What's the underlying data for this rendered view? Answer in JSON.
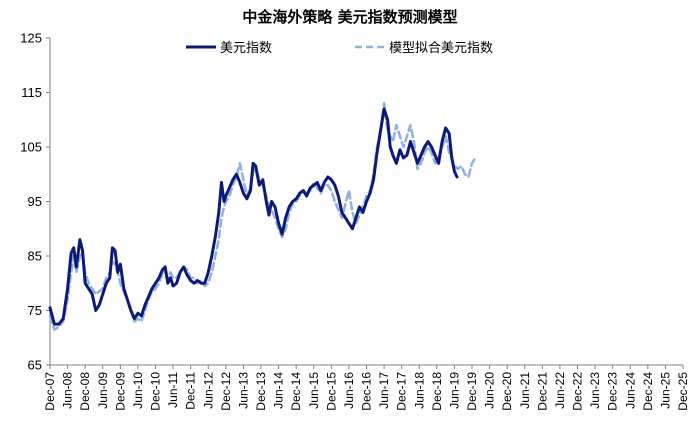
{
  "chart_data": {
    "type": "line",
    "title": "中金海外策略 美元指数预测模型",
    "xlabel": "",
    "ylabel": "",
    "ylim": [
      65,
      125
    ],
    "yticks": [
      65,
      75,
      85,
      95,
      105,
      115,
      125
    ],
    "x_tick_labels": [
      "Dec-07",
      "Jun-08",
      "Dec-08",
      "Jun-09",
      "Dec-09",
      "Jun-10",
      "Dec-10",
      "Jun-11",
      "Dec-11",
      "Jun-12",
      "Dec-12",
      "Jun-13",
      "Dec-13",
      "Jun-14",
      "Dec-14",
      "Jun-15",
      "Dec-15",
      "Jun-16",
      "Dec-16",
      "Jun-17",
      "Dec-17",
      "Jun-18",
      "Dec-18",
      "Jun-19",
      "Dec-19",
      "Jun-20",
      "Dec-20",
      "Jun-21",
      "Dec-21",
      "Jun-22",
      "Dec-22",
      "Jun-23",
      "Dec-23",
      "Jun-24",
      "Dec-24",
      "Jun-25",
      "Dec-25"
    ],
    "x_unit": "half-years since Dec-07",
    "legend": {
      "placement": "top"
    },
    "grid": false,
    "series": [
      {
        "name": "美元指数",
        "color": "#0e1a7a",
        "style": "solid",
        "points": [
          [
            0,
            75.5
          ],
          [
            0.25,
            72.5
          ],
          [
            0.5,
            72.5
          ],
          [
            0.75,
            73.5
          ],
          [
            1,
            79
          ],
          [
            1.2,
            85.5
          ],
          [
            1.35,
            86.5
          ],
          [
            1.5,
            83
          ],
          [
            1.7,
            88
          ],
          [
            1.85,
            86
          ],
          [
            2,
            80
          ],
          [
            2.2,
            79
          ],
          [
            2.4,
            78
          ],
          [
            2.6,
            75
          ],
          [
            2.8,
            76
          ],
          [
            3,
            78
          ],
          [
            3.2,
            80
          ],
          [
            3.4,
            81
          ],
          [
            3.55,
            86.5
          ],
          [
            3.7,
            86
          ],
          [
            3.85,
            82
          ],
          [
            4,
            83.5
          ],
          [
            4.2,
            79
          ],
          [
            4.4,
            77
          ],
          [
            4.6,
            75
          ],
          [
            4.8,
            73.5
          ],
          [
            5,
            74.5
          ],
          [
            5.2,
            74
          ],
          [
            5.4,
            76
          ],
          [
            5.6,
            77.5
          ],
          [
            5.8,
            79
          ],
          [
            6,
            80
          ],
          [
            6.2,
            81
          ],
          [
            6.4,
            82.5
          ],
          [
            6.55,
            83
          ],
          [
            6.7,
            80
          ],
          [
            6.85,
            81
          ],
          [
            7,
            79.5
          ],
          [
            7.2,
            80
          ],
          [
            7.4,
            82
          ],
          [
            7.6,
            83
          ],
          [
            7.8,
            81.5
          ],
          [
            8,
            80.5
          ],
          [
            8.2,
            80
          ],
          [
            8.4,
            80.5
          ],
          [
            8.6,
            80
          ],
          [
            8.8,
            80
          ],
          [
            9,
            82
          ],
          [
            9.2,
            85
          ],
          [
            9.4,
            88.5
          ],
          [
            9.6,
            93
          ],
          [
            9.75,
            98.5
          ],
          [
            9.9,
            95
          ],
          [
            10,
            96
          ],
          [
            10.2,
            97.5
          ],
          [
            10.4,
            99
          ],
          [
            10.6,
            100
          ],
          [
            10.8,
            98.5
          ],
          [
            11,
            96.5
          ],
          [
            11.2,
            95.5
          ],
          [
            11.4,
            97
          ],
          [
            11.55,
            102
          ],
          [
            11.7,
            101.5
          ],
          [
            11.9,
            98
          ],
          [
            12.1,
            99
          ],
          [
            12.3,
            95
          ],
          [
            12.45,
            92.5
          ],
          [
            12.6,
            95
          ],
          [
            12.8,
            94
          ],
          [
            13,
            91
          ],
          [
            13.2,
            89
          ],
          [
            13.4,
            92
          ],
          [
            13.6,
            94
          ],
          [
            13.8,
            95
          ],
          [
            14,
            95.5
          ],
          [
            14.2,
            96.5
          ],
          [
            14.4,
            97
          ],
          [
            14.6,
            96
          ],
          [
            14.8,
            97.5
          ],
          [
            15,
            98
          ],
          [
            15.2,
            98.5
          ],
          [
            15.4,
            97
          ],
          [
            15.6,
            98.5
          ],
          [
            15.8,
            99.5
          ],
          [
            16,
            99
          ],
          [
            16.2,
            98
          ],
          [
            16.4,
            96
          ],
          [
            16.6,
            93
          ],
          [
            16.8,
            92
          ],
          [
            17,
            91
          ],
          [
            17.2,
            90
          ],
          [
            17.4,
            92
          ],
          [
            17.6,
            94
          ],
          [
            17.8,
            93
          ],
          [
            18,
            95
          ],
          [
            18.2,
            96.5
          ],
          [
            18.4,
            99
          ],
          [
            18.6,
            104
          ],
          [
            18.8,
            108
          ],
          [
            19,
            112
          ],
          [
            19.2,
            110
          ],
          [
            19.35,
            105
          ],
          [
            19.5,
            103.5
          ],
          [
            19.7,
            102
          ],
          [
            19.9,
            104.5
          ],
          [
            20.1,
            103
          ],
          [
            20.3,
            103.5
          ],
          [
            20.5,
            106
          ],
          [
            20.7,
            104
          ],
          [
            20.9,
            102
          ],
          [
            21.1,
            103.5
          ],
          [
            21.3,
            105
          ],
          [
            21.5,
            106
          ],
          [
            21.7,
            105
          ],
          [
            21.9,
            103.5
          ],
          [
            22.1,
            102
          ],
          [
            22.3,
            106
          ],
          [
            22.5,
            108.5
          ],
          [
            22.7,
            107.5
          ],
          [
            22.85,
            103
          ],
          [
            23,
            100.5
          ],
          [
            23.15,
            99.5
          ]
        ]
      },
      {
        "name": "模型拟合美元指数",
        "color": "#8fb3dc",
        "style": "dashed",
        "points": [
          [
            0,
            74
          ],
          [
            0.25,
            71.5
          ],
          [
            0.5,
            72
          ],
          [
            0.75,
            73
          ],
          [
            1,
            77
          ],
          [
            1.2,
            82
          ],
          [
            1.35,
            85
          ],
          [
            1.5,
            82
          ],
          [
            1.7,
            85
          ],
          [
            1.85,
            85.5
          ],
          [
            2,
            82
          ],
          [
            2.2,
            80
          ],
          [
            2.4,
            79
          ],
          [
            2.6,
            78
          ],
          [
            2.8,
            78.5
          ],
          [
            3,
            79
          ],
          [
            3.2,
            81
          ],
          [
            3.4,
            82
          ],
          [
            3.55,
            84
          ],
          [
            3.7,
            83.5
          ],
          [
            3.85,
            82
          ],
          [
            4,
            80
          ],
          [
            4.2,
            78.5
          ],
          [
            4.4,
            77
          ],
          [
            4.6,
            75
          ],
          [
            4.8,
            73
          ],
          [
            5,
            73.5
          ],
          [
            5.2,
            73
          ],
          [
            5.4,
            75
          ],
          [
            5.6,
            77
          ],
          [
            5.8,
            78.5
          ],
          [
            6,
            79
          ],
          [
            6.2,
            80
          ],
          [
            6.4,
            82
          ],
          [
            6.55,
            82
          ],
          [
            6.7,
            81
          ],
          [
            6.85,
            82
          ],
          [
            7,
            81
          ],
          [
            7.2,
            81
          ],
          [
            7.4,
            82
          ],
          [
            7.6,
            83
          ],
          [
            7.8,
            82.5
          ],
          [
            8,
            81
          ],
          [
            8.2,
            81
          ],
          [
            8.4,
            80
          ],
          [
            8.6,
            80.5
          ],
          [
            8.8,
            79.5
          ],
          [
            9,
            80
          ],
          [
            9.2,
            82
          ],
          [
            9.4,
            85
          ],
          [
            9.6,
            88
          ],
          [
            9.75,
            92
          ],
          [
            9.9,
            94
          ],
          [
            10,
            95
          ],
          [
            10.2,
            96
          ],
          [
            10.4,
            98
          ],
          [
            10.6,
            99.5
          ],
          [
            10.8,
            102
          ],
          [
            11,
            99
          ],
          [
            11.2,
            96
          ],
          [
            11.4,
            97.5
          ],
          [
            11.55,
            100.5
          ],
          [
            11.7,
            101
          ],
          [
            11.9,
            99
          ],
          [
            12.1,
            98
          ],
          [
            12.3,
            96
          ],
          [
            12.45,
            94
          ],
          [
            12.6,
            93.5
          ],
          [
            12.8,
            92
          ],
          [
            13,
            90
          ],
          [
            13.2,
            88.5
          ],
          [
            13.4,
            90
          ],
          [
            13.6,
            93
          ],
          [
            13.8,
            94.5
          ],
          [
            14,
            95
          ],
          [
            14.2,
            96
          ],
          [
            14.4,
            97
          ],
          [
            14.6,
            96.5
          ],
          [
            14.8,
            97
          ],
          [
            15,
            98.5
          ],
          [
            15.2,
            97.5
          ],
          [
            15.4,
            96.5
          ],
          [
            15.6,
            98
          ],
          [
            15.8,
            98
          ],
          [
            16,
            97
          ],
          [
            16.2,
            95
          ],
          [
            16.4,
            93.5
          ],
          [
            16.6,
            92
          ],
          [
            16.8,
            94.5
          ],
          [
            17,
            97
          ],
          [
            17.2,
            93
          ],
          [
            17.4,
            91
          ],
          [
            17.6,
            92.5
          ],
          [
            17.8,
            94
          ],
          [
            18,
            96
          ],
          [
            18.2,
            97
          ],
          [
            18.4,
            100
          ],
          [
            18.6,
            105
          ],
          [
            18.8,
            108
          ],
          [
            19,
            113
          ],
          [
            19.2,
            108
          ],
          [
            19.35,
            107
          ],
          [
            19.5,
            106
          ],
          [
            19.7,
            109
          ],
          [
            19.9,
            107
          ],
          [
            20.1,
            105
          ],
          [
            20.3,
            107
          ],
          [
            20.5,
            109
          ],
          [
            20.7,
            106
          ],
          [
            20.9,
            101
          ],
          [
            21.1,
            102
          ],
          [
            21.3,
            104
          ],
          [
            21.5,
            105
          ],
          [
            21.7,
            104
          ],
          [
            21.9,
            102
          ],
          [
            22.1,
            103
          ],
          [
            22.3,
            105
          ],
          [
            22.5,
            107
          ],
          [
            22.7,
            104
          ],
          [
            22.85,
            103
          ],
          [
            23,
            101.5
          ],
          [
            23.2,
            101
          ],
          [
            23.4,
            101.5
          ],
          [
            23.6,
            100
          ],
          [
            23.8,
            99.5
          ],
          [
            24,
            102
          ],
          [
            24.2,
            103
          ]
        ]
      }
    ]
  }
}
